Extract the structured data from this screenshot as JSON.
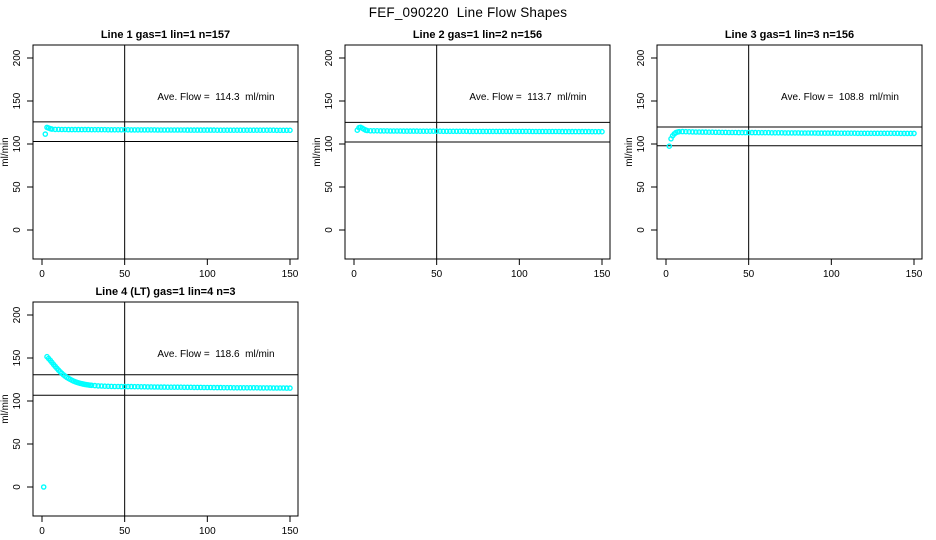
{
  "page_title": "FEF_090220  Line Flow Shapes",
  "colors": {
    "series": "#00ffff",
    "axis": "#000000",
    "background": "#ffffff"
  },
  "chart_data": [
    {
      "type": "scatter",
      "id": "line-1",
      "title": "Line 1 gas=1 lin=1 n=157",
      "annotation": "Ave. Flow =  114.3  ml/min",
      "ave_flow_ml_min": 114.3,
      "xlabel": "",
      "ylabel": "ml/min",
      "xlim": [
        0,
        150
      ],
      "ylim": [
        0,
        200
      ],
      "x_ticks": [
        0,
        50,
        100,
        150
      ],
      "y_ticks": [
        0,
        50,
        100,
        150,
        200
      ],
      "vline_x": 50,
      "ref_lines": [
        125.7,
        102.9
      ],
      "marker": "open-circle",
      "points": [
        [
          2,
          111.5
        ],
        [
          3,
          119.3
        ],
        [
          4,
          118.6
        ],
        [
          5,
          117.8
        ],
        [
          6,
          117.3
        ],
        [
          8,
          117.0
        ],
        [
          10,
          117.0
        ],
        [
          12,
          116.9
        ],
        [
          14,
          116.9
        ],
        [
          16,
          116.8
        ],
        [
          18,
          116.8
        ],
        [
          20,
          116.8
        ],
        [
          22,
          116.7
        ],
        [
          24,
          116.7
        ],
        [
          26,
          116.7
        ],
        [
          28,
          116.7
        ],
        [
          30,
          116.6
        ],
        [
          32,
          116.6
        ],
        [
          34,
          116.6
        ],
        [
          36,
          116.6
        ],
        [
          38,
          116.6
        ],
        [
          40,
          116.5
        ],
        [
          42,
          116.5
        ],
        [
          44,
          116.5
        ],
        [
          46,
          116.5
        ],
        [
          48,
          116.5
        ],
        [
          50,
          116.5
        ],
        [
          52,
          116.5
        ],
        [
          54,
          116.4
        ],
        [
          56,
          116.4
        ],
        [
          58,
          116.4
        ],
        [
          60,
          116.4
        ],
        [
          62,
          116.4
        ],
        [
          64,
          116.4
        ],
        [
          66,
          116.4
        ],
        [
          68,
          116.4
        ],
        [
          70,
          116.3
        ],
        [
          72,
          116.3
        ],
        [
          74,
          116.3
        ],
        [
          76,
          116.3
        ],
        [
          78,
          116.3
        ],
        [
          80,
          116.3
        ],
        [
          82,
          116.3
        ],
        [
          84,
          116.3
        ],
        [
          86,
          116.3
        ],
        [
          88,
          116.2
        ],
        [
          90,
          116.2
        ],
        [
          92,
          116.2
        ],
        [
          94,
          116.2
        ],
        [
          96,
          116.2
        ],
        [
          98,
          116.2
        ],
        [
          100,
          116.2
        ],
        [
          102,
          116.2
        ],
        [
          104,
          116.2
        ],
        [
          106,
          116.1
        ],
        [
          108,
          116.1
        ],
        [
          110,
          116.1
        ],
        [
          112,
          116.1
        ],
        [
          114,
          116.1
        ],
        [
          116,
          116.1
        ],
        [
          118,
          116.1
        ],
        [
          120,
          116.1
        ],
        [
          122,
          116.1
        ],
        [
          124,
          116.0
        ],
        [
          126,
          116.0
        ],
        [
          128,
          116.0
        ],
        [
          130,
          116.0
        ],
        [
          132,
          116.0
        ],
        [
          134,
          116.0
        ],
        [
          136,
          116.0
        ],
        [
          138,
          116.0
        ],
        [
          140,
          116.0
        ],
        [
          142,
          115.9
        ],
        [
          144,
          115.9
        ],
        [
          146,
          115.9
        ],
        [
          148,
          115.9
        ],
        [
          150,
          115.9
        ]
      ]
    },
    {
      "type": "scatter",
      "id": "line-2",
      "title": "Line 2 gas=1 lin=2 n=156",
      "annotation": "Ave. Flow =  113.7  ml/min",
      "ave_flow_ml_min": 113.7,
      "xlabel": "",
      "ylabel": "ml/min",
      "xlim": [
        0,
        150
      ],
      "ylim": [
        0,
        200
      ],
      "x_ticks": [
        0,
        50,
        100,
        150
      ],
      "y_ticks": [
        0,
        50,
        100,
        150,
        200
      ],
      "vline_x": 50,
      "ref_lines": [
        125.1,
        102.3
      ],
      "marker": "open-circle",
      "points": [
        [
          2,
          116.0
        ],
        [
          3,
          118.9
        ],
        [
          4,
          119.4
        ],
        [
          5,
          118.4
        ],
        [
          6,
          117.2
        ],
        [
          7,
          116.2
        ],
        [
          8,
          115.7
        ],
        [
          10,
          115.4
        ],
        [
          12,
          115.3
        ],
        [
          14,
          115.3
        ],
        [
          16,
          115.2
        ],
        [
          18,
          115.2
        ],
        [
          20,
          115.2
        ],
        [
          22,
          115.1
        ],
        [
          24,
          115.1
        ],
        [
          26,
          115.1
        ],
        [
          28,
          115.1
        ],
        [
          30,
          115.0
        ],
        [
          32,
          115.0
        ],
        [
          34,
          115.0
        ],
        [
          36,
          115.0
        ],
        [
          38,
          115.0
        ],
        [
          40,
          114.9
        ],
        [
          42,
          114.9
        ],
        [
          44,
          114.9
        ],
        [
          46,
          114.9
        ],
        [
          48,
          114.9
        ],
        [
          50,
          114.9
        ],
        [
          52,
          114.9
        ],
        [
          54,
          114.8
        ],
        [
          56,
          114.8
        ],
        [
          58,
          114.8
        ],
        [
          60,
          114.8
        ],
        [
          62,
          114.8
        ],
        [
          64,
          114.8
        ],
        [
          66,
          114.8
        ],
        [
          68,
          114.8
        ],
        [
          70,
          114.7
        ],
        [
          72,
          114.7
        ],
        [
          74,
          114.7
        ],
        [
          76,
          114.7
        ],
        [
          78,
          114.7
        ],
        [
          80,
          114.7
        ],
        [
          82,
          114.7
        ],
        [
          84,
          114.7
        ],
        [
          86,
          114.7
        ],
        [
          88,
          114.6
        ],
        [
          90,
          114.6
        ],
        [
          92,
          114.6
        ],
        [
          94,
          114.6
        ],
        [
          96,
          114.6
        ],
        [
          98,
          114.6
        ],
        [
          100,
          114.6
        ],
        [
          102,
          114.6
        ],
        [
          104,
          114.6
        ],
        [
          106,
          114.6
        ],
        [
          108,
          114.5
        ],
        [
          110,
          114.5
        ],
        [
          112,
          114.5
        ],
        [
          114,
          114.5
        ],
        [
          116,
          114.5
        ],
        [
          118,
          114.5
        ],
        [
          120,
          114.5
        ],
        [
          122,
          114.5
        ],
        [
          124,
          114.5
        ],
        [
          126,
          114.4
        ],
        [
          128,
          114.4
        ],
        [
          130,
          114.4
        ],
        [
          132,
          114.4
        ],
        [
          134,
          114.4
        ],
        [
          136,
          114.4
        ],
        [
          138,
          114.4
        ],
        [
          140,
          114.4
        ],
        [
          142,
          114.4
        ],
        [
          144,
          114.3
        ],
        [
          146,
          114.3
        ],
        [
          148,
          114.3
        ],
        [
          150,
          114.3
        ]
      ]
    },
    {
      "type": "scatter",
      "id": "line-3",
      "title": "Line 3 gas=1 lin=3 n=156",
      "annotation": "Ave. Flow =  108.8  ml/min",
      "ave_flow_ml_min": 108.8,
      "xlabel": "",
      "ylabel": "ml/min",
      "xlim": [
        0,
        150
      ],
      "ylim": [
        0,
        200
      ],
      "x_ticks": [
        0,
        50,
        100,
        150
      ],
      "y_ticks": [
        0,
        50,
        100,
        150,
        200
      ],
      "vline_x": 50,
      "ref_lines": [
        119.7,
        97.9
      ],
      "marker": "open-circle",
      "points": [
        [
          2,
          97.5
        ],
        [
          3,
          106.0
        ],
        [
          4,
          109.5
        ],
        [
          5,
          111.8
        ],
        [
          6,
          113.2
        ],
        [
          7,
          113.9
        ],
        [
          8,
          114.3
        ],
        [
          10,
          114.4
        ],
        [
          12,
          114.3
        ],
        [
          14,
          114.2
        ],
        [
          16,
          114.1
        ],
        [
          18,
          114.0
        ],
        [
          20,
          113.9
        ],
        [
          22,
          113.8
        ],
        [
          24,
          113.8
        ],
        [
          26,
          113.7
        ],
        [
          28,
          113.7
        ],
        [
          30,
          113.6
        ],
        [
          32,
          113.6
        ],
        [
          34,
          113.5
        ],
        [
          36,
          113.5
        ],
        [
          38,
          113.4
        ],
        [
          40,
          113.4
        ],
        [
          42,
          113.4
        ],
        [
          44,
          113.3
        ],
        [
          46,
          113.3
        ],
        [
          48,
          113.3
        ],
        [
          50,
          113.2
        ],
        [
          52,
          113.2
        ],
        [
          54,
          113.2
        ],
        [
          56,
          113.1
        ],
        [
          58,
          113.1
        ],
        [
          60,
          113.1
        ],
        [
          62,
          113.1
        ],
        [
          64,
          113.0
        ],
        [
          66,
          113.0
        ],
        [
          68,
          113.0
        ],
        [
          70,
          113.0
        ],
        [
          72,
          112.9
        ],
        [
          74,
          112.9
        ],
        [
          76,
          112.9
        ],
        [
          78,
          112.9
        ],
        [
          80,
          112.9
        ],
        [
          82,
          112.8
        ],
        [
          84,
          112.8
        ],
        [
          86,
          112.8
        ],
        [
          88,
          112.8
        ],
        [
          90,
          112.8
        ],
        [
          92,
          112.7
        ],
        [
          94,
          112.7
        ],
        [
          96,
          112.7
        ],
        [
          98,
          112.7
        ],
        [
          100,
          112.7
        ],
        [
          102,
          112.7
        ],
        [
          104,
          112.6
        ],
        [
          106,
          112.6
        ],
        [
          108,
          112.6
        ],
        [
          110,
          112.6
        ],
        [
          112,
          112.6
        ],
        [
          114,
          112.6
        ],
        [
          116,
          112.5
        ],
        [
          118,
          112.5
        ],
        [
          120,
          112.5
        ],
        [
          122,
          112.5
        ],
        [
          124,
          112.5
        ],
        [
          126,
          112.5
        ],
        [
          128,
          112.4
        ],
        [
          130,
          112.4
        ],
        [
          132,
          112.4
        ],
        [
          134,
          112.4
        ],
        [
          136,
          112.4
        ],
        [
          138,
          112.4
        ],
        [
          140,
          112.4
        ],
        [
          142,
          112.3
        ],
        [
          144,
          112.3
        ],
        [
          146,
          112.3
        ],
        [
          148,
          112.3
        ],
        [
          150,
          112.3
        ]
      ]
    },
    {
      "type": "scatter",
      "id": "line-4",
      "title": "Line 4 (LT) gas=1 lin=4 n=3",
      "annotation": "Ave. Flow =  118.6  ml/min",
      "ave_flow_ml_min": 118.6,
      "xlabel": "",
      "ylabel": "ml/min",
      "xlim": [
        0,
        150
      ],
      "ylim": [
        0,
        200
      ],
      "x_ticks": [
        0,
        50,
        100,
        150
      ],
      "y_ticks": [
        0,
        50,
        100,
        150,
        200
      ],
      "vline_x": 50,
      "ref_lines": [
        130.5,
        106.7
      ],
      "marker": "open-circle",
      "points": [
        [
          1,
          0
        ],
        [
          3,
          151.5
        ],
        [
          4,
          149.4
        ],
        [
          5,
          147.2
        ],
        [
          6,
          144.9
        ],
        [
          7,
          142.5
        ],
        [
          8,
          140.2
        ],
        [
          9,
          138.0
        ],
        [
          10,
          135.9
        ],
        [
          11,
          133.9
        ],
        [
          12,
          132.1
        ],
        [
          13,
          130.4
        ],
        [
          14,
          128.9
        ],
        [
          15,
          127.5
        ],
        [
          16,
          126.3
        ],
        [
          17,
          125.2
        ],
        [
          18,
          124.2
        ],
        [
          19,
          123.3
        ],
        [
          20,
          122.5
        ],
        [
          21,
          121.8
        ],
        [
          22,
          121.2
        ],
        [
          23,
          120.6
        ],
        [
          24,
          120.1
        ],
        [
          25,
          119.7
        ],
        [
          26,
          119.3
        ],
        [
          27,
          119.0
        ],
        [
          28,
          118.7
        ],
        [
          29,
          118.4
        ],
        [
          30,
          118.2
        ],
        [
          32,
          117.9
        ],
        [
          34,
          117.6
        ],
        [
          36,
          117.4
        ],
        [
          38,
          117.2
        ],
        [
          40,
          117.1
        ],
        [
          42,
          117.0
        ],
        [
          44,
          116.9
        ],
        [
          46,
          116.9
        ],
        [
          48,
          116.8
        ],
        [
          50,
          116.8
        ],
        [
          52,
          116.7
        ],
        [
          54,
          116.7
        ],
        [
          56,
          116.6
        ],
        [
          58,
          116.6
        ],
        [
          60,
          116.5
        ],
        [
          62,
          116.5
        ],
        [
          64,
          116.4
        ],
        [
          66,
          116.4
        ],
        [
          68,
          116.3
        ],
        [
          70,
          116.3
        ],
        [
          72,
          116.2
        ],
        [
          74,
          116.2
        ],
        [
          76,
          116.1
        ],
        [
          78,
          116.1
        ],
        [
          80,
          116.1
        ],
        [
          82,
          116.0
        ],
        [
          84,
          116.0
        ],
        [
          86,
          115.9
        ],
        [
          88,
          115.9
        ],
        [
          90,
          115.9
        ],
        [
          92,
          115.8
        ],
        [
          94,
          115.8
        ],
        [
          96,
          115.8
        ],
        [
          98,
          115.7
        ],
        [
          100,
          115.7
        ],
        [
          102,
          115.7
        ],
        [
          104,
          115.6
        ],
        [
          106,
          115.6
        ],
        [
          108,
          115.6
        ],
        [
          110,
          115.5
        ],
        [
          112,
          115.5
        ],
        [
          114,
          115.5
        ],
        [
          116,
          115.4
        ],
        [
          118,
          115.4
        ],
        [
          120,
          115.4
        ],
        [
          122,
          115.4
        ],
        [
          124,
          115.3
        ],
        [
          126,
          115.3
        ],
        [
          128,
          115.3
        ],
        [
          130,
          115.3
        ],
        [
          132,
          115.2
        ],
        [
          134,
          115.2
        ],
        [
          136,
          115.2
        ],
        [
          138,
          115.2
        ],
        [
          140,
          115.1
        ],
        [
          142,
          115.1
        ],
        [
          144,
          115.1
        ],
        [
          146,
          115.1
        ],
        [
          148,
          115.0
        ],
        [
          150,
          115.0
        ]
      ]
    }
  ]
}
